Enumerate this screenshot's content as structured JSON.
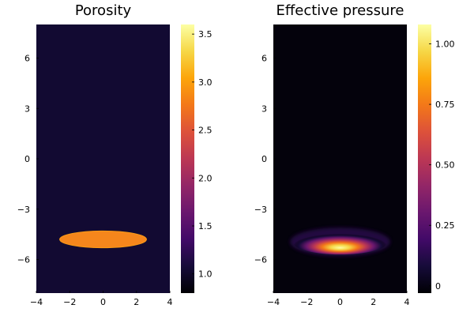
{
  "chart_data": [
    {
      "type": "heatmap",
      "title": "Porosity",
      "xlabel": "",
      "ylabel": "",
      "xlim": [
        -4,
        4
      ],
      "ylim": [
        -8,
        8
      ],
      "xticks": [
        -4,
        -2,
        0,
        2,
        4
      ],
      "xtick_labels": [
        "−4",
        "−2",
        "0",
        "2",
        "4"
      ],
      "yticks": [
        -6,
        -3,
        0,
        3,
        6
      ],
      "ytick_labels": [
        "−6",
        "−3",
        "0",
        "3",
        "6"
      ],
      "colormap": "inferno",
      "background_value": 1.0,
      "feature": {
        "shape": "ellipse",
        "center_x": 0,
        "center_y": -4.8,
        "semi_x": 2.6,
        "semi_y": 0.5,
        "value": 3.0
      },
      "colorbar": {
        "min": 0.8,
        "max": 3.6,
        "ticks": [
          1.0,
          1.5,
          2.0,
          2.5,
          3.0,
          3.5
        ],
        "tick_labels": [
          "1.0",
          "1.5",
          "2.0",
          "2.5",
          "3.0",
          "3.5"
        ]
      }
    },
    {
      "type": "heatmap",
      "title": "Effective pressure",
      "xlabel": "",
      "ylabel": "",
      "xlim": [
        -4,
        4
      ],
      "ylim": [
        -8,
        8
      ],
      "xticks": [
        -4,
        -2,
        0,
        2,
        4
      ],
      "xtick_labels": [
        "−4",
        "−2",
        "0",
        "2",
        "4"
      ],
      "yticks": [
        -6,
        -3,
        0,
        3,
        6
      ],
      "ytick_labels": [
        "−6",
        "−3",
        "0",
        "3",
        "6"
      ],
      "colormap": "inferno",
      "background_value": 0.0,
      "feature": {
        "shape": "ellipse",
        "center_x": 0,
        "center_y": -5.0,
        "semi_x": 2.8,
        "semi_y": 0.7,
        "peak_value": 1.05,
        "peak_y": -5.3
      },
      "colorbar": {
        "min": -0.03,
        "max": 1.08,
        "ticks": [
          0,
          0.25,
          0.5,
          0.75,
          1.0
        ],
        "tick_labels": [
          "0",
          "0.25",
          "0.50",
          "0.75",
          "1.00"
        ]
      }
    }
  ]
}
